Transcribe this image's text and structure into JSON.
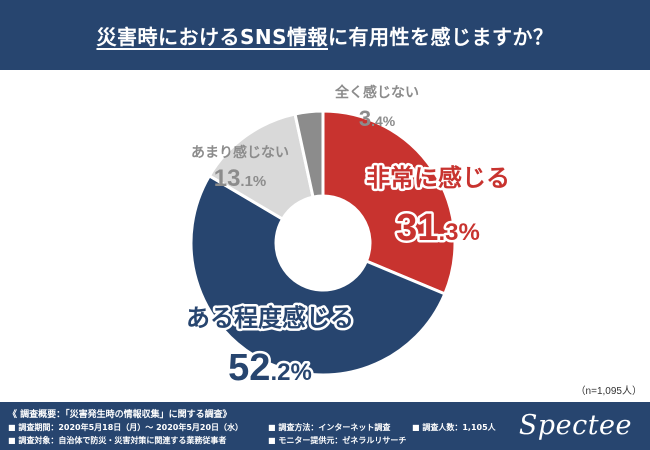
{
  "header": {
    "title_underlined": "災害時におけるSNS情報",
    "title_rest": "に有用性を感じますか？"
  },
  "chart_data": {
    "type": "pie",
    "title": "災害時におけるSNS情報に有用性を感じますか？",
    "donut": true,
    "slices": [
      {
        "label": "非常に感じる",
        "value": 31.3,
        "int": "31",
        "dec": ".3%",
        "color": "#c8332f"
      },
      {
        "label": "ある程度感じる",
        "value": 52.2,
        "int": "52",
        "dec": ".2%",
        "color": "#27456f"
      },
      {
        "label": "あまり感じない",
        "value": 13.1,
        "int": "13",
        "dec": ".1%",
        "color": "#d9d9d9"
      },
      {
        "label": "全く感じない",
        "value": 3.4,
        "int": "3",
        "dec": ".4%",
        "color": "#8c8c8c"
      }
    ],
    "sample_note": "（n=1,095人）"
  },
  "footer": {
    "title": "《 調査概要：「災害発生時の情報収集」に関する調査》",
    "items": {
      "period": "■ 調査期間：2020年5月18日（月）～ 2020年5月20日（水）",
      "method": "■ 調査方法：インターネット調査",
      "count": "■ 調査人数：1,105人",
      "target": "■ 調査対象：自治体で防災・災害対策に関連する業務従事者",
      "provider": "■ モニター提供元：ゼネラルリサーチ"
    },
    "logo": "Spectee"
  }
}
